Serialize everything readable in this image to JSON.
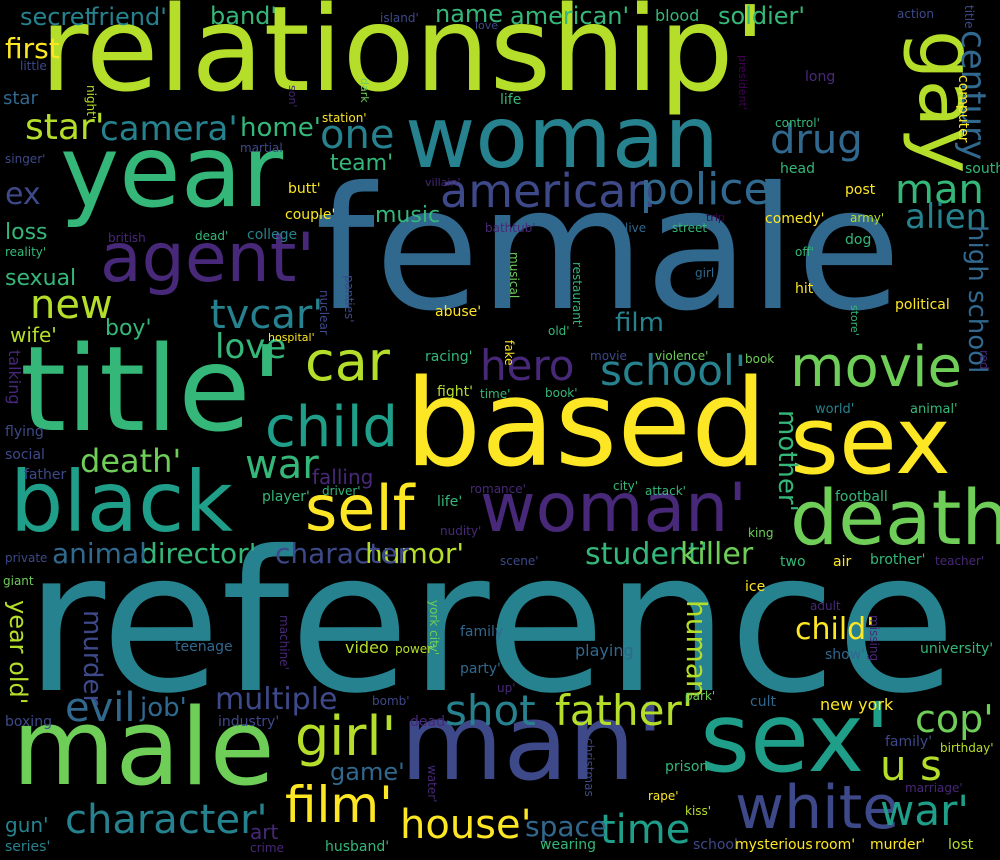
{
  "background": "#000000",
  "palette": [
    "#fde725",
    "#b5de2b",
    "#6ece58",
    "#35b779",
    "#1f9e89",
    "#26828e",
    "#31688e",
    "#3e4989",
    "#482878",
    "#440154"
  ],
  "words": [
    {
      "text": "reference",
      "color": "#26828e"
    },
    {
      "text": "female",
      "color": "#31688e"
    },
    {
      "text": "relationship'",
      "color": "#b5de2b"
    },
    {
      "text": "based",
      "color": "#fde725"
    },
    {
      "text": "title'",
      "color": "#35b779"
    },
    {
      "text": "man'",
      "color": "#3e4989"
    },
    {
      "text": "male",
      "color": "#6ece58"
    },
    {
      "text": "year",
      "color": "#35b779"
    },
    {
      "text": "woman",
      "color": "#26828e"
    },
    {
      "text": "sex'",
      "color": "#1f9e89"
    },
    {
      "text": "sex",
      "color": "#fde725"
    },
    {
      "text": "black",
      "color": "#1f9e89"
    },
    {
      "text": "death",
      "color": "#6ece58"
    },
    {
      "text": "woman'",
      "color": "#482878"
    },
    {
      "text": "gay",
      "color": "#b5de2b"
    },
    {
      "text": "agent'",
      "color": "#482878"
    },
    {
      "text": "white",
      "color": "#3e4989"
    },
    {
      "text": "self",
      "color": "#fde725"
    },
    {
      "text": "movie",
      "color": "#6ece58"
    },
    {
      "text": "child",
      "color": "#1f9e89"
    },
    {
      "text": "car",
      "color": "#b5de2b"
    },
    {
      "text": "american",
      "color": "#3e4989"
    },
    {
      "text": "police",
      "color": "#31688e"
    },
    {
      "text": "film'",
      "color": "#fde725"
    },
    {
      "text": "character'",
      "color": "#26828e"
    },
    {
      "text": "girl'",
      "color": "#b5de2b"
    },
    {
      "text": "father'",
      "color": "#b5de2b"
    },
    {
      "text": "shot",
      "color": "#26828e"
    },
    {
      "text": "house'",
      "color": "#fde725"
    },
    {
      "text": "war'",
      "color": "#1f9e89"
    },
    {
      "text": "school'",
      "color": "#26828e"
    },
    {
      "text": "u s",
      "color": "#b5de2b"
    },
    {
      "text": "cop'",
      "color": "#6ece58"
    },
    {
      "text": "time",
      "color": "#1f9e89"
    },
    {
      "text": "war",
      "color": "#35b779"
    },
    {
      "text": "hero",
      "color": "#482878"
    },
    {
      "text": "drug",
      "color": "#31688e"
    },
    {
      "text": "one",
      "color": "#26828e"
    },
    {
      "text": "death'",
      "color": "#6ece58"
    },
    {
      "text": "evil",
      "color": "#31688e"
    },
    {
      "text": "tvcar'",
      "color": "#26828e"
    },
    {
      "text": "love",
      "color": "#35b779"
    },
    {
      "text": "new",
      "color": "#b5de2b"
    },
    {
      "text": "man",
      "color": "#35b779"
    },
    {
      "text": "century",
      "color": "#31688e"
    },
    {
      "text": "alien",
      "color": "#26828e"
    },
    {
      "text": "star'",
      "color": "#b5de2b"
    },
    {
      "text": "camera'",
      "color": "#26828e"
    },
    {
      "text": "home'",
      "color": "#35b779"
    },
    {
      "text": "multiple",
      "color": "#3e4989"
    },
    {
      "text": "job'",
      "color": "#31688e"
    },
    {
      "text": "student'",
      "color": "#35b779"
    },
    {
      "text": "killer",
      "color": "#6ece58"
    },
    {
      "text": "humor'",
      "color": "#b5de2b"
    },
    {
      "text": "director'",
      "color": "#35b779"
    },
    {
      "text": "animal",
      "color": "#31688e"
    },
    {
      "text": "character",
      "color": "#3e4989"
    },
    {
      "text": "child'",
      "color": "#fde725"
    },
    {
      "text": "human",
      "color": "#b5de2b"
    },
    {
      "text": "mother'",
      "color": "#35b779"
    },
    {
      "text": "high school",
      "color": "#31688e"
    },
    {
      "text": "film",
      "color": "#26828e"
    },
    {
      "text": "space",
      "color": "#31688e"
    },
    {
      "text": "murder",
      "color": "#3e4989"
    },
    {
      "text": "year old'",
      "color": "#b5de2b"
    },
    {
      "text": "game'",
      "color": "#31688e"
    },
    {
      "text": "ex",
      "color": "#3e4989"
    },
    {
      "text": "first",
      "color": "#fde725"
    },
    {
      "text": "secret",
      "color": "#26828e"
    },
    {
      "text": "friend'",
      "color": "#26828e"
    },
    {
      "text": "band'",
      "color": "#35b779"
    },
    {
      "text": "name",
      "color": "#35b779"
    },
    {
      "text": "american'",
      "color": "#35b779"
    },
    {
      "text": "soldier'",
      "color": "#35b779"
    },
    {
      "text": "blood",
      "color": "#35b779"
    },
    {
      "text": "music",
      "color": "#35b779"
    },
    {
      "text": "team'",
      "color": "#35b779"
    },
    {
      "text": "boy'",
      "color": "#35b779"
    },
    {
      "text": "sexual",
      "color": "#35b779"
    },
    {
      "text": "loss",
      "color": "#35b779"
    },
    {
      "text": "wife'",
      "color": "#b5de2b"
    },
    {
      "text": "abuse'",
      "color": "#fde725"
    },
    {
      "text": "political",
      "color": "#fde725"
    },
    {
      "text": "post",
      "color": "#fde725"
    },
    {
      "text": "comedy'",
      "color": "#fde725"
    },
    {
      "text": "couple'",
      "color": "#fde725"
    },
    {
      "text": "butt'",
      "color": "#fde725"
    },
    {
      "text": "hit",
      "color": "#fde725"
    },
    {
      "text": "new york",
      "color": "#fde725"
    },
    {
      "text": "air",
      "color": "#fde725"
    },
    {
      "text": "two",
      "color": "#35b779"
    },
    {
      "text": "ice",
      "color": "#fde725"
    },
    {
      "text": "party'",
      "color": "#31688e"
    },
    {
      "text": "family",
      "color": "#31688e"
    },
    {
      "text": "playing",
      "color": "#31688e"
    },
    {
      "text": "video",
      "color": "#b5de2b"
    },
    {
      "text": "power'",
      "color": "#b5de2b"
    },
    {
      "text": "teenage",
      "color": "#31688e"
    },
    {
      "text": "prison",
      "color": "#35b779"
    },
    {
      "text": "cult",
      "color": "#31688e"
    },
    {
      "text": "university'",
      "color": "#35b779"
    },
    {
      "text": "show'",
      "color": "#31688e"
    },
    {
      "text": "brother'",
      "color": "#35b779"
    },
    {
      "text": "football",
      "color": "#35b779"
    },
    {
      "text": "dog",
      "color": "#35b779"
    },
    {
      "text": "girl",
      "color": "#31688e"
    },
    {
      "text": "head",
      "color": "#35b779"
    },
    {
      "text": "south",
      "color": "#35b779"
    },
    {
      "text": "control'",
      "color": "#35b779"
    },
    {
      "text": "life",
      "color": "#35b779"
    },
    {
      "text": "long",
      "color": "#482878"
    },
    {
      "text": "computer",
      "color": "#fde725"
    },
    {
      "text": "title",
      "color": "#3e4989"
    },
    {
      "text": "action",
      "color": "#3e4989"
    },
    {
      "text": "island'",
      "color": "#3e4989"
    },
    {
      "text": "love",
      "color": "#3e4989"
    },
    {
      "text": "station'",
      "color": "#fde725"
    },
    {
      "text": "martial",
      "color": "#3e4989"
    },
    {
      "text": "singer'",
      "color": "#3e4989"
    },
    {
      "text": "star",
      "color": "#31688e"
    },
    {
      "text": "little",
      "color": "#3e4989"
    },
    {
      "text": "night'",
      "color": "#b5de2b"
    },
    {
      "text": "son'",
      "color": "#482878"
    },
    {
      "text": "dark",
      "color": "#6ece58"
    },
    {
      "text": "president'",
      "color": "#440154"
    },
    {
      "text": "villain'",
      "color": "#482878"
    },
    {
      "text": "college",
      "color": "#26828e"
    },
    {
      "text": "dead'",
      "color": "#35b779"
    },
    {
      "text": "british",
      "color": "#482878"
    },
    {
      "text": "reality'",
      "color": "#35b779"
    },
    {
      "text": "bathtub'",
      "color": "#482878"
    },
    {
      "text": "live",
      "color": "#31688e"
    },
    {
      "text": "street",
      "color": "#35b779"
    },
    {
      "text": "trip",
      "color": "#440154"
    },
    {
      "text": "army'",
      "color": "#b5de2b"
    },
    {
      "text": "off'",
      "color": "#35b779"
    },
    {
      "text": "store'",
      "color": "#35b779"
    },
    {
      "text": "red",
      "color": "#482878"
    },
    {
      "text": "book",
      "color": "#6ece58"
    },
    {
      "text": "violence'",
      "color": "#6ece58"
    },
    {
      "text": "movie",
      "color": "#3e4989"
    },
    {
      "text": "old'",
      "color": "#35b779"
    },
    {
      "text": "fake",
      "color": "#fde725"
    },
    {
      "text": "restaurant'",
      "color": "#35b779"
    },
    {
      "text": "musical",
      "color": "#6ece58"
    },
    {
      "text": "panties'",
      "color": "#3e4989"
    },
    {
      "text": "nuclear",
      "color": "#3e4989"
    },
    {
      "text": "hospital'",
      "color": "#fde725"
    },
    {
      "text": "racing'",
      "color": "#35b779"
    },
    {
      "text": "fight'",
      "color": "#b5de2b"
    },
    {
      "text": "time'",
      "color": "#35b779"
    },
    {
      "text": "book'",
      "color": "#35b779"
    },
    {
      "text": "world'",
      "color": "#26828e"
    },
    {
      "text": "animal'",
      "color": "#35b779"
    },
    {
      "text": "talking",
      "color": "#482878"
    },
    {
      "text": "flying",
      "color": "#3e4989"
    },
    {
      "text": "social",
      "color": "#3e4989"
    },
    {
      "text": "father",
      "color": "#3e4989"
    },
    {
      "text": "falling",
      "color": "#482878"
    },
    {
      "text": "player'",
      "color": "#35b779"
    },
    {
      "text": "driver'",
      "color": "#35b779"
    },
    {
      "text": "life'",
      "color": "#35b779"
    },
    {
      "text": "romance'",
      "color": "#482878"
    },
    {
      "text": "city'",
      "color": "#35b779"
    },
    {
      "text": "attack'",
      "color": "#35b779"
    },
    {
      "text": "nudity'",
      "color": "#482878"
    },
    {
      "text": "scene'",
      "color": "#3e4989"
    },
    {
      "text": "private",
      "color": "#3e4989"
    },
    {
      "text": "giant",
      "color": "#6ece58"
    },
    {
      "text": "king",
      "color": "#6ece58"
    },
    {
      "text": "teacher'",
      "color": "#482878"
    },
    {
      "text": "york city'",
      "color": "#6ece58"
    },
    {
      "text": "machine'",
      "color": "#482878"
    },
    {
      "text": "up'",
      "color": "#482878"
    },
    {
      "text": "adult",
      "color": "#482878"
    },
    {
      "text": "missing",
      "color": "#482878"
    },
    {
      "text": "park'",
      "color": "#6ece58"
    },
    {
      "text": "bomb'",
      "color": "#3e4989"
    },
    {
      "text": "dead",
      "color": "#482878"
    },
    {
      "text": "industry'",
      "color": "#3e4989"
    },
    {
      "text": "boxing",
      "color": "#3e4989"
    },
    {
      "text": "family'",
      "color": "#3e4989"
    },
    {
      "text": "birthday'",
      "color": "#b5de2b"
    },
    {
      "text": "christmas",
      "color": "#3e4989"
    },
    {
      "text": "water'",
      "color": "#482878"
    },
    {
      "text": "rape'",
      "color": "#fde725"
    },
    {
      "text": "kiss'",
      "color": "#b5de2b"
    },
    {
      "text": "marriage'",
      "color": "#482878"
    },
    {
      "text": "gun'",
      "color": "#26828e"
    },
    {
      "text": "series'",
      "color": "#26828e"
    },
    {
      "text": "art",
      "color": "#482878"
    },
    {
      "text": "crime",
      "color": "#482878"
    },
    {
      "text": "husband'",
      "color": "#35b779"
    },
    {
      "text": "wearing",
      "color": "#35b779"
    },
    {
      "text": "school",
      "color": "#3e4989"
    },
    {
      "text": "mysterious",
      "color": "#fde725"
    },
    {
      "text": "room'",
      "color": "#fde725"
    },
    {
      "text": "murder'",
      "color": "#fde725"
    },
    {
      "text": "lost",
      "color": "#b5de2b"
    }
  ]
}
